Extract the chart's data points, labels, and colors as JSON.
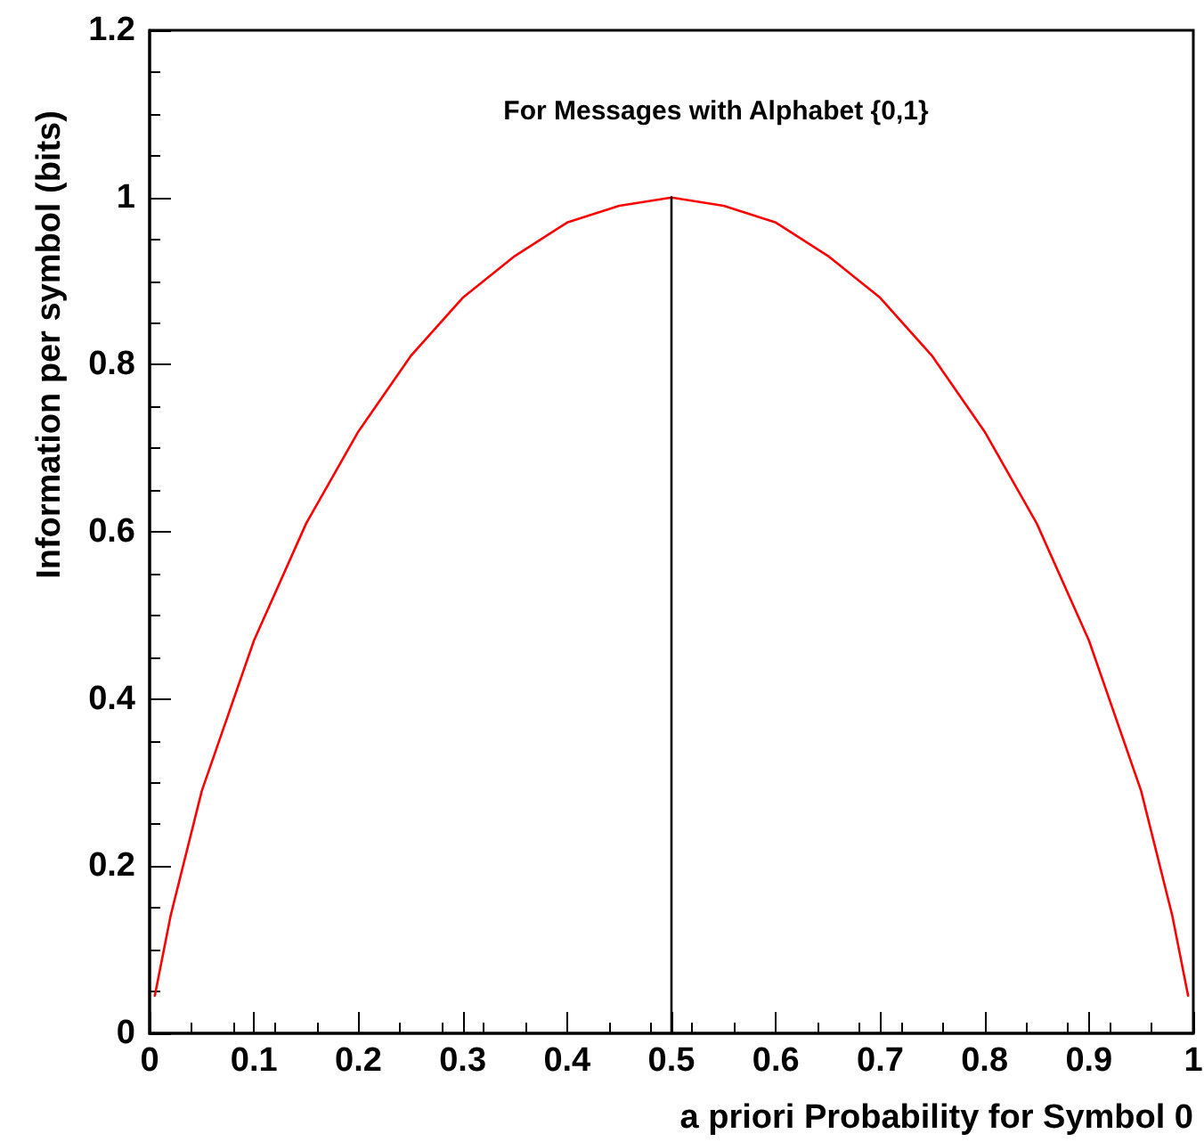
{
  "chart_data": {
    "type": "line",
    "title": "For Messages with Alphabet {0,1}",
    "xlabel": "a priori Probability for Symbol 0",
    "ylabel": "Information per symbol (bits)",
    "series": [
      {
        "color": "#ff0000",
        "x": [
          0.005,
          0.02,
          0.05,
          0.1,
          0.15,
          0.2,
          0.25,
          0.3,
          0.35,
          0.4,
          0.45,
          0.5,
          0.55,
          0.6,
          0.65,
          0.7,
          0.75,
          0.8,
          0.85,
          0.9,
          0.95,
          0.98,
          0.995
        ],
        "values": [
          0.045,
          0.14,
          0.29,
          0.47,
          0.61,
          0.72,
          0.81,
          0.88,
          0.93,
          0.97,
          0.99,
          1.0,
          0.99,
          0.97,
          0.93,
          0.88,
          0.81,
          0.72,
          0.61,
          0.47,
          0.29,
          0.14,
          0.045
        ]
      },
      {
        "color": "#000000",
        "x": [
          0.5,
          0.5,
          0.5
        ],
        "values": [
          0,
          0.5,
          1.0
        ]
      }
    ],
    "xlim": [
      0,
      1
    ],
    "xticks": [
      0,
      0.1,
      0.2,
      0.3,
      0.4,
      0.5,
      0.6,
      0.7,
      0.8,
      0.9,
      1
    ],
    "ylim": [
      0,
      1.2
    ],
    "yticks": [
      0,
      0.2,
      0.4,
      0.6,
      0.8,
      1,
      1.2
    ],
    "marker": "none",
    "line_style": "solid"
  }
}
